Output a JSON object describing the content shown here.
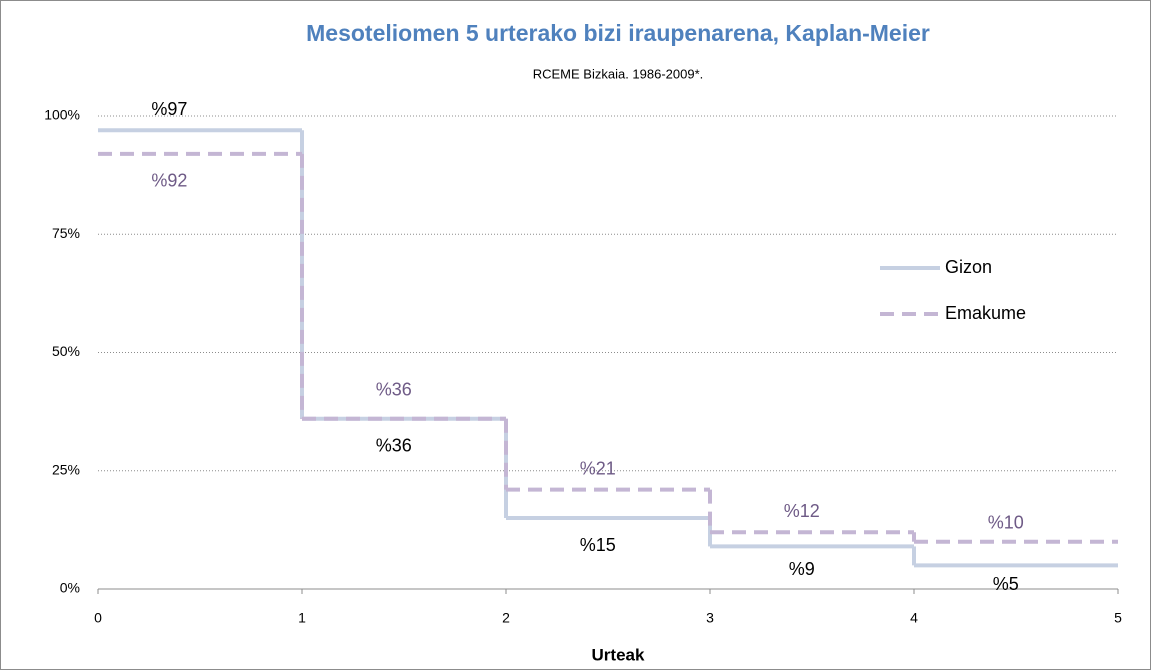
{
  "chart_data": {
    "type": "step",
    "title": "Mesoteliomen 5 urterako bizi iraupenarena, Kaplan-Meier",
    "subtitle": "RCEME Bizkaia. 1986-2009*.",
    "x_label": "Urteak",
    "x": [
      0,
      1,
      2,
      3,
      4
    ],
    "xlim": [
      0,
      5
    ],
    "xticks": [
      0,
      1,
      2,
      3,
      4,
      5
    ],
    "ylim": [
      0,
      100
    ],
    "yticks": [
      {
        "value": 0,
        "label": "0%"
      },
      {
        "value": 25,
        "label": "25%"
      },
      {
        "value": 50,
        "label": "50%"
      },
      {
        "value": 75,
        "label": "75%"
      },
      {
        "value": 100,
        "label": "100%"
      }
    ],
    "grid": true,
    "legend": "right",
    "series": [
      {
        "name": "Gizon",
        "color": "#c6d0e2",
        "dash": "solid",
        "label_color": "#000000",
        "values": [
          97,
          36,
          15,
          9,
          5
        ],
        "value_labels": [
          "%97",
          "%36",
          "%15",
          "%9",
          "%5"
        ]
      },
      {
        "name": "Emakume",
        "color": "#c4b6d4",
        "dash": "dashed",
        "label_color": "#6e5a86",
        "values": [
          92,
          36,
          21,
          12,
          10
        ],
        "value_labels": [
          "%92",
          "%36",
          "%21",
          "%12",
          "%10"
        ]
      }
    ]
  }
}
